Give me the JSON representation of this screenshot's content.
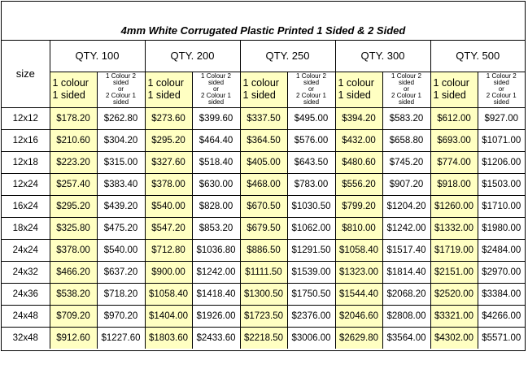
{
  "title": "4mm White Corrugated Plastic Printed 1 Sided & 2 Sided",
  "size_header": "size",
  "qty_headers": [
    "QTY. 100",
    "QTY. 200",
    "QTY. 250",
    "QTY. 300",
    "QTY. 500"
  ],
  "sub_headers": {
    "one_colour": "1 colour 1 sided",
    "two_colour_line1": "1 Colour 2 sided",
    "two_colour_line2": "or",
    "two_colour_line3": "2 Colour 1 sided"
  },
  "highlight_color": "#ffffc2",
  "rows": [
    {
      "size": "12x12",
      "prices": [
        "$178.20",
        "$262.80",
        "$273.60",
        "$399.60",
        "$337.50",
        "$495.00",
        "$394.20",
        "$583.20",
        "$612.00",
        "$927.00"
      ]
    },
    {
      "size": "12x16",
      "prices": [
        "$210.60",
        "$304.20",
        "$295.20",
        "$464.40",
        "$364.50",
        "$576.00",
        "$432.00",
        "$658.80",
        "$693.00",
        "$1071.00"
      ]
    },
    {
      "size": "12x18",
      "prices": [
        "$223.20",
        "$315.00",
        "$327.60",
        "$518.40",
        "$405.00",
        "$643.50",
        "$480.60",
        "$745.20",
        "$774.00",
        "$1206.00"
      ]
    },
    {
      "size": "12x24",
      "prices": [
        "$257.40",
        "$383.40",
        "$378.00",
        "$630.00",
        "$468.00",
        "$783.00",
        "$556.20",
        "$907.20",
        "$918.00",
        "$1503.00"
      ]
    },
    {
      "size": "16x24",
      "prices": [
        "$295.20",
        "$439.20",
        "$540.00",
        "$828.00",
        "$670.50",
        "$1030.50",
        "$799.20",
        "$1204.20",
        "$1260.00",
        "$1710.00"
      ]
    },
    {
      "size": "18x24",
      "prices": [
        "$325.80",
        "$475.20",
        "$547.20",
        "$853.20",
        "$679.50",
        "$1062.00",
        "$810.00",
        "$1242.00",
        "$1332.00",
        "$1980.00"
      ]
    },
    {
      "size": "24x24",
      "prices": [
        "$378.00",
        "$540.00",
        "$712.80",
        "$1036.80",
        "$886.50",
        "$1291.50",
        "$1058.40",
        "$1517.40",
        "$1719.00",
        "$2484.00"
      ]
    },
    {
      "size": "24x32",
      "prices": [
        "$466.20",
        "$637.20",
        "$900.00",
        "$1242.00",
        "$1111.50",
        "$1539.00",
        "$1323.00",
        "$1814.40",
        "$2151.00",
        "$2970.00"
      ]
    },
    {
      "size": "24x36",
      "prices": [
        "$538.20",
        "$718.20",
        "$1058.40",
        "$1418.40",
        "$1300.50",
        "$1750.50",
        "$1544.40",
        "$2068.20",
        "$2520.00",
        "$3384.00"
      ]
    },
    {
      "size": "24x48",
      "prices": [
        "$709.20",
        "$970.20",
        "$1404.00",
        "$1926.00",
        "$1723.50",
        "$2376.00",
        "$2046.60",
        "$2808.00",
        "$3321.00",
        "$4266.00"
      ]
    },
    {
      "size": "32x48",
      "prices": [
        "$912.60",
        "$1227.60",
        "$1803.60",
        "$2433.60",
        "$2218.50",
        "$3006.00",
        "$2629.80",
        "$3564.00",
        "$4302.00",
        "$5571.00"
      ]
    }
  ]
}
